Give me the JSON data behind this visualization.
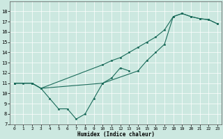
{
  "xlabel": "Humidex (Indice chaleur)",
  "xlim": [
    -0.5,
    23.5
  ],
  "ylim": [
    7,
    19
  ],
  "yticks": [
    7,
    8,
    9,
    10,
    11,
    12,
    13,
    14,
    15,
    16,
    17,
    18
  ],
  "xticks": [
    0,
    1,
    2,
    3,
    4,
    5,
    6,
    7,
    8,
    9,
    10,
    11,
    12,
    13,
    14,
    15,
    16,
    17,
    18,
    19,
    20,
    21,
    22,
    23
  ],
  "bg_color": "#cce8e0",
  "grid_color": "#ffffff",
  "line_color": "#1a6b5a",
  "line_lw": 0.8,
  "marker_size": 1.8,
  "line1_x": [
    0,
    1,
    2,
    3,
    4,
    5,
    6,
    7,
    8,
    9,
    10,
    11,
    12,
    13
  ],
  "line1_y": [
    11,
    11,
    11,
    10.5,
    9.5,
    8.5,
    8.5,
    7.5,
    8.0,
    9.5,
    11.0,
    11.5,
    12.5,
    12.2
  ],
  "line2_x": [
    0,
    2,
    3,
    10,
    11,
    12,
    13,
    14,
    15,
    16,
    17,
    18,
    19,
    20,
    21,
    22,
    23
  ],
  "line2_y": [
    11,
    11,
    10.5,
    12.8,
    13.2,
    13.5,
    14.0,
    14.5,
    15.0,
    15.5,
    16.2,
    17.5,
    17.8,
    17.5,
    17.3,
    17.2,
    16.8
  ],
  "line3_x": [
    0,
    2,
    3,
    10,
    14,
    15,
    16,
    17,
    18,
    19,
    20,
    21,
    22,
    23
  ],
  "line3_y": [
    11,
    11,
    10.5,
    11.0,
    12.2,
    13.2,
    14.0,
    14.8,
    17.5,
    17.8,
    17.5,
    17.3,
    17.2,
    16.8
  ]
}
